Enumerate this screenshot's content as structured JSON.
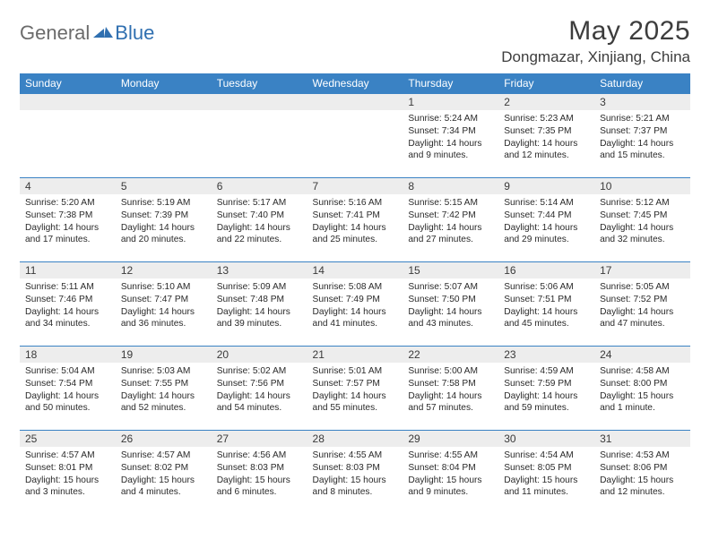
{
  "logo": {
    "general": "General",
    "blue": "Blue"
  },
  "title": "May 2025",
  "location": "Dongmazar, Xinjiang, China",
  "colors": {
    "header_bg": "#3a82c4",
    "header_text": "#ffffff",
    "daynum_bg": "#ededed",
    "row_border": "#3a82c4",
    "body_text": "#2a2a2a",
    "title_text": "#3d3d3d",
    "logo_gray": "#6b6b6b",
    "logo_blue": "#2f6fb0"
  },
  "weekdays": [
    "Sunday",
    "Monday",
    "Tuesday",
    "Wednesday",
    "Thursday",
    "Friday",
    "Saturday"
  ],
  "weeks": [
    [
      null,
      null,
      null,
      null,
      {
        "n": "1",
        "sunrise": "5:24 AM",
        "sunset": "7:34 PM",
        "daylight": "14 hours and 9 minutes."
      },
      {
        "n": "2",
        "sunrise": "5:23 AM",
        "sunset": "7:35 PM",
        "daylight": "14 hours and 12 minutes."
      },
      {
        "n": "3",
        "sunrise": "5:21 AM",
        "sunset": "7:37 PM",
        "daylight": "14 hours and 15 minutes."
      }
    ],
    [
      {
        "n": "4",
        "sunrise": "5:20 AM",
        "sunset": "7:38 PM",
        "daylight": "14 hours and 17 minutes."
      },
      {
        "n": "5",
        "sunrise": "5:19 AM",
        "sunset": "7:39 PM",
        "daylight": "14 hours and 20 minutes."
      },
      {
        "n": "6",
        "sunrise": "5:17 AM",
        "sunset": "7:40 PM",
        "daylight": "14 hours and 22 minutes."
      },
      {
        "n": "7",
        "sunrise": "5:16 AM",
        "sunset": "7:41 PM",
        "daylight": "14 hours and 25 minutes."
      },
      {
        "n": "8",
        "sunrise": "5:15 AM",
        "sunset": "7:42 PM",
        "daylight": "14 hours and 27 minutes."
      },
      {
        "n": "9",
        "sunrise": "5:14 AM",
        "sunset": "7:44 PM",
        "daylight": "14 hours and 29 minutes."
      },
      {
        "n": "10",
        "sunrise": "5:12 AM",
        "sunset": "7:45 PM",
        "daylight": "14 hours and 32 minutes."
      }
    ],
    [
      {
        "n": "11",
        "sunrise": "5:11 AM",
        "sunset": "7:46 PM",
        "daylight": "14 hours and 34 minutes."
      },
      {
        "n": "12",
        "sunrise": "5:10 AM",
        "sunset": "7:47 PM",
        "daylight": "14 hours and 36 minutes."
      },
      {
        "n": "13",
        "sunrise": "5:09 AM",
        "sunset": "7:48 PM",
        "daylight": "14 hours and 39 minutes."
      },
      {
        "n": "14",
        "sunrise": "5:08 AM",
        "sunset": "7:49 PM",
        "daylight": "14 hours and 41 minutes."
      },
      {
        "n": "15",
        "sunrise": "5:07 AM",
        "sunset": "7:50 PM",
        "daylight": "14 hours and 43 minutes."
      },
      {
        "n": "16",
        "sunrise": "5:06 AM",
        "sunset": "7:51 PM",
        "daylight": "14 hours and 45 minutes."
      },
      {
        "n": "17",
        "sunrise": "5:05 AM",
        "sunset": "7:52 PM",
        "daylight": "14 hours and 47 minutes."
      }
    ],
    [
      {
        "n": "18",
        "sunrise": "5:04 AM",
        "sunset": "7:54 PM",
        "daylight": "14 hours and 50 minutes."
      },
      {
        "n": "19",
        "sunrise": "5:03 AM",
        "sunset": "7:55 PM",
        "daylight": "14 hours and 52 minutes."
      },
      {
        "n": "20",
        "sunrise": "5:02 AM",
        "sunset": "7:56 PM",
        "daylight": "14 hours and 54 minutes."
      },
      {
        "n": "21",
        "sunrise": "5:01 AM",
        "sunset": "7:57 PM",
        "daylight": "14 hours and 55 minutes."
      },
      {
        "n": "22",
        "sunrise": "5:00 AM",
        "sunset": "7:58 PM",
        "daylight": "14 hours and 57 minutes."
      },
      {
        "n": "23",
        "sunrise": "4:59 AM",
        "sunset": "7:59 PM",
        "daylight": "14 hours and 59 minutes."
      },
      {
        "n": "24",
        "sunrise": "4:58 AM",
        "sunset": "8:00 PM",
        "daylight": "15 hours and 1 minute."
      }
    ],
    [
      {
        "n": "25",
        "sunrise": "4:57 AM",
        "sunset": "8:01 PM",
        "daylight": "15 hours and 3 minutes."
      },
      {
        "n": "26",
        "sunrise": "4:57 AM",
        "sunset": "8:02 PM",
        "daylight": "15 hours and 4 minutes."
      },
      {
        "n": "27",
        "sunrise": "4:56 AM",
        "sunset": "8:03 PM",
        "daylight": "15 hours and 6 minutes."
      },
      {
        "n": "28",
        "sunrise": "4:55 AM",
        "sunset": "8:03 PM",
        "daylight": "15 hours and 8 minutes."
      },
      {
        "n": "29",
        "sunrise": "4:55 AM",
        "sunset": "8:04 PM",
        "daylight": "15 hours and 9 minutes."
      },
      {
        "n": "30",
        "sunrise": "4:54 AM",
        "sunset": "8:05 PM",
        "daylight": "15 hours and 11 minutes."
      },
      {
        "n": "31",
        "sunrise": "4:53 AM",
        "sunset": "8:06 PM",
        "daylight": "15 hours and 12 minutes."
      }
    ]
  ],
  "labels": {
    "sunrise": "Sunrise:",
    "sunset": "Sunset:",
    "daylight": "Daylight:"
  }
}
